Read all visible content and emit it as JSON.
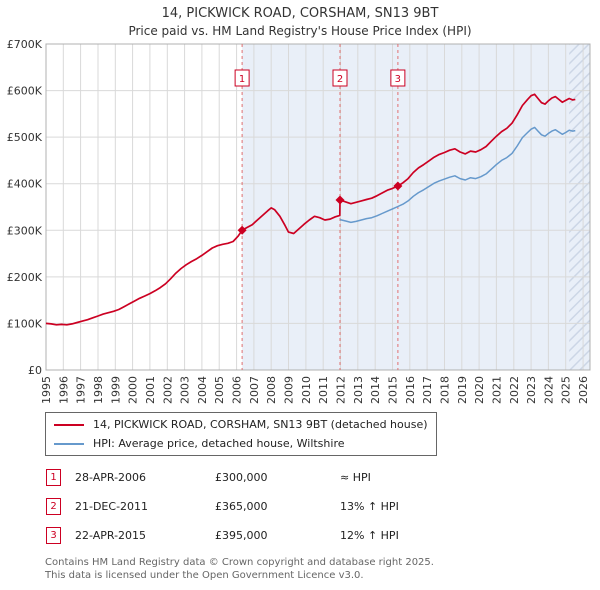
{
  "title": "14, PICKWICK ROAD, CORSHAM, SN13 9BT",
  "subtitle": "Price paid vs. HM Land Registry's House Price Index (HPI)",
  "footer": [
    "Contains HM Land Registry data © Crown copyright and database right 2025.",
    "This data is licensed under the Open Government Licence v3.0."
  ],
  "chart_data": {
    "type": "line",
    "xlabel": "",
    "ylabel": "",
    "xlim": [
      1995,
      2026.4
    ],
    "ylim": [
      0,
      700000
    ],
    "grid": true,
    "legend_position": "below",
    "shade_from": 2006.32,
    "shade_color": "#e9eff8",
    "hatch_from": 2025.2,
    "x_ticks": [
      1995,
      1996,
      1997,
      1998,
      1999,
      2000,
      2001,
      2002,
      2003,
      2004,
      2005,
      2006,
      2007,
      2008,
      2009,
      2010,
      2011,
      2012,
      2013,
      2014,
      2015,
      2016,
      2017,
      2018,
      2019,
      2020,
      2021,
      2022,
      2023,
      2024,
      2025,
      2026
    ],
    "y_ticks": [
      {
        "v": 0,
        "label": "£0"
      },
      {
        "v": 100000,
        "label": "£100K"
      },
      {
        "v": 200000,
        "label": "£200K"
      },
      {
        "v": 300000,
        "label": "£300K"
      },
      {
        "v": 400000,
        "label": "£400K"
      },
      {
        "v": 500000,
        "label": "£500K"
      },
      {
        "v": 600000,
        "label": "£600K"
      },
      {
        "v": 700000,
        "label": "£700K"
      }
    ],
    "sales": [
      {
        "num": "1",
        "date": "28-APR-2006",
        "price": "£300,000",
        "hpi": "≈ HPI",
        "year": 2006.32,
        "value": 300000
      },
      {
        "num": "2",
        "date": "21-DEC-2011",
        "price": "£365,000",
        "hpi": "13% ↑ HPI",
        "year": 2011.97,
        "value": 365000
      },
      {
        "num": "3",
        "date": "22-APR-2015",
        "price": "£395,000",
        "hpi": "12% ↑ HPI",
        "year": 2015.31,
        "value": 395000
      }
    ],
    "series": [
      {
        "name": "14, PICKWICK ROAD, CORSHAM, SN13 9BT (detached house)",
        "color": "#cc0022",
        "points": [
          [
            1995.0,
            100000
          ],
          [
            1995.3,
            99000
          ],
          [
            1995.6,
            97000
          ],
          [
            1995.9,
            98000
          ],
          [
            1996.2,
            97000
          ],
          [
            1996.5,
            99000
          ],
          [
            1996.8,
            102000
          ],
          [
            1997.1,
            105000
          ],
          [
            1997.4,
            108000
          ],
          [
            1997.7,
            112000
          ],
          [
            1998.0,
            116000
          ],
          [
            1998.3,
            120000
          ],
          [
            1998.6,
            123000
          ],
          [
            1998.9,
            126000
          ],
          [
            1999.2,
            130000
          ],
          [
            1999.5,
            136000
          ],
          [
            1999.8,
            142000
          ],
          [
            2000.1,
            148000
          ],
          [
            2000.4,
            154000
          ],
          [
            2000.7,
            159000
          ],
          [
            2001.0,
            164000
          ],
          [
            2001.3,
            170000
          ],
          [
            2001.6,
            177000
          ],
          [
            2001.9,
            185000
          ],
          [
            2002.2,
            196000
          ],
          [
            2002.5,
            208000
          ],
          [
            2002.8,
            218000
          ],
          [
            2003.1,
            226000
          ],
          [
            2003.4,
            233000
          ],
          [
            2003.7,
            239000
          ],
          [
            2004.0,
            246000
          ],
          [
            2004.3,
            254000
          ],
          [
            2004.6,
            262000
          ],
          [
            2004.9,
            267000
          ],
          [
            2005.2,
            270000
          ],
          [
            2005.5,
            272000
          ],
          [
            2005.8,
            276000
          ],
          [
            2006.1,
            288000
          ],
          [
            2006.32,
            300000
          ],
          [
            2006.6,
            306000
          ],
          [
            2006.9,
            312000
          ],
          [
            2007.2,
            322000
          ],
          [
            2007.5,
            332000
          ],
          [
            2007.8,
            342000
          ],
          [
            2008.0,
            348000
          ],
          [
            2008.2,
            344000
          ],
          [
            2008.5,
            330000
          ],
          [
            2008.8,
            310000
          ],
          [
            2009.0,
            296000
          ],
          [
            2009.3,
            293000
          ],
          [
            2009.6,
            303000
          ],
          [
            2009.9,
            313000
          ],
          [
            2010.2,
            322000
          ],
          [
            2010.5,
            330000
          ],
          [
            2010.8,
            327000
          ],
          [
            2011.1,
            322000
          ],
          [
            2011.4,
            324000
          ],
          [
            2011.7,
            329000
          ],
          [
            2011.96,
            332000
          ],
          [
            2011.97,
            365000
          ],
          [
            2012.3,
            361000
          ],
          [
            2012.6,
            357000
          ],
          [
            2012.9,
            360000
          ],
          [
            2013.2,
            363000
          ],
          [
            2013.5,
            366000
          ],
          [
            2013.8,
            369000
          ],
          [
            2014.1,
            374000
          ],
          [
            2014.4,
            380000
          ],
          [
            2014.7,
            386000
          ],
          [
            2015.0,
            390000
          ],
          [
            2015.31,
            395000
          ],
          [
            2015.6,
            402000
          ],
          [
            2015.9,
            411000
          ],
          [
            2016.2,
            424000
          ],
          [
            2016.5,
            434000
          ],
          [
            2016.8,
            441000
          ],
          [
            2017.1,
            449000
          ],
          [
            2017.4,
            457000
          ],
          [
            2017.7,
            463000
          ],
          [
            2018.0,
            467000
          ],
          [
            2018.3,
            472000
          ],
          [
            2018.6,
            475000
          ],
          [
            2018.9,
            468000
          ],
          [
            2019.2,
            464000
          ],
          [
            2019.5,
            470000
          ],
          [
            2019.8,
            468000
          ],
          [
            2020.1,
            473000
          ],
          [
            2020.4,
            480000
          ],
          [
            2020.7,
            491000
          ],
          [
            2021.0,
            502000
          ],
          [
            2021.3,
            512000
          ],
          [
            2021.6,
            519000
          ],
          [
            2021.9,
            530000
          ],
          [
            2022.2,
            548000
          ],
          [
            2022.5,
            568000
          ],
          [
            2022.8,
            581000
          ],
          [
            2023.0,
            589000
          ],
          [
            2023.2,
            592000
          ],
          [
            2023.4,
            583000
          ],
          [
            2023.6,
            574000
          ],
          [
            2023.8,
            571000
          ],
          [
            2024.0,
            578000
          ],
          [
            2024.2,
            584000
          ],
          [
            2024.4,
            587000
          ],
          [
            2024.6,
            581000
          ],
          [
            2024.8,
            575000
          ],
          [
            2025.0,
            579000
          ],
          [
            2025.2,
            583000
          ],
          [
            2025.4,
            580000
          ],
          [
            2025.55,
            581000
          ]
        ]
      },
      {
        "name": "HPI: Average price, detached house, Wiltshire",
        "color": "#6699cc",
        "points": [
          [
            2011.97,
            323000
          ],
          [
            2012.3,
            320000
          ],
          [
            2012.6,
            317000
          ],
          [
            2012.9,
            319000
          ],
          [
            2013.2,
            322000
          ],
          [
            2013.5,
            325000
          ],
          [
            2013.8,
            327000
          ],
          [
            2014.1,
            331000
          ],
          [
            2014.4,
            336000
          ],
          [
            2014.7,
            341000
          ],
          [
            2015.0,
            346000
          ],
          [
            2015.31,
            351000
          ],
          [
            2015.6,
            356000
          ],
          [
            2015.9,
            363000
          ],
          [
            2016.2,
            373000
          ],
          [
            2016.5,
            381000
          ],
          [
            2016.8,
            387000
          ],
          [
            2017.1,
            394000
          ],
          [
            2017.4,
            401000
          ],
          [
            2017.7,
            406000
          ],
          [
            2018.0,
            410000
          ],
          [
            2018.3,
            414000
          ],
          [
            2018.6,
            417000
          ],
          [
            2018.9,
            411000
          ],
          [
            2019.2,
            408000
          ],
          [
            2019.5,
            413000
          ],
          [
            2019.8,
            411000
          ],
          [
            2020.1,
            415000
          ],
          [
            2020.4,
            421000
          ],
          [
            2020.7,
            431000
          ],
          [
            2021.0,
            441000
          ],
          [
            2021.3,
            450000
          ],
          [
            2021.6,
            456000
          ],
          [
            2021.9,
            465000
          ],
          [
            2022.2,
            481000
          ],
          [
            2022.5,
            499000
          ],
          [
            2022.8,
            510000
          ],
          [
            2023.0,
            517000
          ],
          [
            2023.2,
            521000
          ],
          [
            2023.4,
            513000
          ],
          [
            2023.6,
            505000
          ],
          [
            2023.8,
            502000
          ],
          [
            2024.0,
            508000
          ],
          [
            2024.2,
            513000
          ],
          [
            2024.4,
            516000
          ],
          [
            2024.6,
            511000
          ],
          [
            2024.8,
            506000
          ],
          [
            2025.0,
            510000
          ],
          [
            2025.2,
            515000
          ],
          [
            2025.4,
            513000
          ],
          [
            2025.55,
            514000
          ]
        ]
      }
    ]
  }
}
